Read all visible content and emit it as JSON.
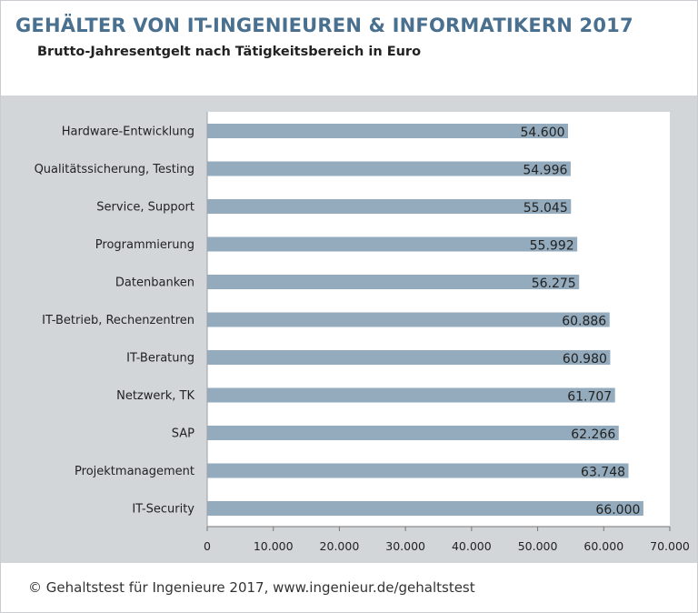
{
  "header": {
    "title": "GEHÄLTER VON IT-INGENIEUREN & INFORMATIKERN 2017",
    "subtitle": "Brutto-Jahresentgelt nach Tätigkeitsbereich in Euro"
  },
  "footer": {
    "credit": "© Gehaltstest für Ingenieure 2017, www.ingenieur.de/gehaltstest"
  },
  "colors": {
    "bar": "#93abbd",
    "title": "#4a7090",
    "plot_background": "#d3d6d9"
  },
  "chart_data": {
    "type": "bar",
    "orientation": "horizontal",
    "title": "GEHÄLTER VON IT-INGENIEUREN & INFORMATIKERN 2017",
    "subtitle": "Brutto-Jahresentgelt nach Tätigkeitsbereich in Euro",
    "xlabel": "",
    "ylabel": "",
    "categories": [
      "Hardware-Entwicklung",
      "Qualitätssicherung, Testing",
      "Service, Support",
      "Programmierung",
      "Datenbanken",
      "IT-Betrieb, Rechenzentren",
      "IT-Beratung",
      "Netzwerk, TK",
      "SAP",
      "Projektmanagement",
      "IT-Security"
    ],
    "values": [
      54600,
      54996,
      55045,
      55992,
      56275,
      60886,
      60980,
      61707,
      62266,
      63748,
      66000
    ],
    "value_labels": [
      "54.600",
      "54.996",
      "55.045",
      "55.992",
      "56.275",
      "60.886",
      "60.980",
      "61.707",
      "62.266",
      "63.748",
      "66.000"
    ],
    "xlim": [
      0,
      70000
    ],
    "xticks": [
      0,
      10000,
      20000,
      30000,
      40000,
      50000,
      60000,
      70000
    ],
    "xtick_labels": [
      "0",
      "10.000",
      "20.000",
      "30.000",
      "40.000",
      "50.000",
      "60.000",
      "70.000"
    ],
    "grid": false,
    "legend": "none"
  }
}
